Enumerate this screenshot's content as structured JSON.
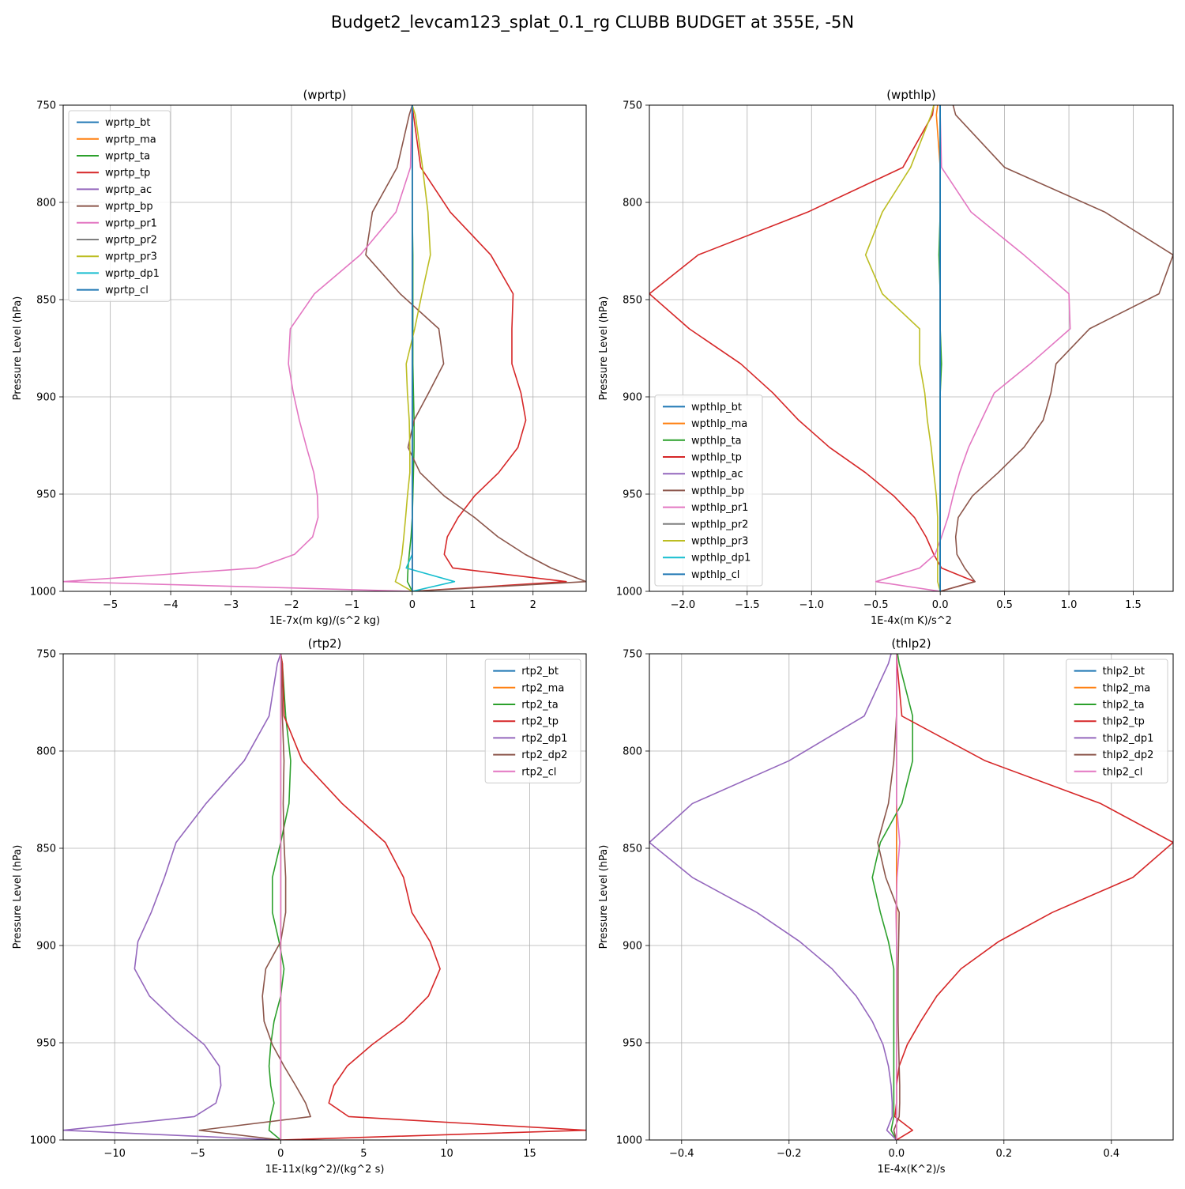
{
  "figure": {
    "title": "Budget2_levcam123_splat_0.1_rg CLUBB BUDGET at 355E, -5N"
  },
  "chart_data": [
    {
      "type": "line",
      "title": "(wprtp)",
      "xlabel": "1E-7x(m kg)/(s^2 kg)",
      "ylabel": "Pressure Level (hPa)",
      "xlim": [
        -5.78,
        2.88
      ],
      "ylim": [
        1000,
        750
      ],
      "xticks": [
        -5,
        -4,
        -3,
        -2,
        -1,
        0,
        1,
        2
      ],
      "xtick_labels": [
        "−5",
        "−4",
        "−3",
        "−2",
        "−1",
        "0",
        "1",
        "2"
      ],
      "yticks": [
        750,
        800,
        850,
        900,
        950,
        1000
      ],
      "ytick_labels": [
        "750",
        "800",
        "850",
        "900",
        "950",
        "1000"
      ],
      "grid": true,
      "legend_position": "upper-left",
      "y": [
        750,
        755,
        782,
        805,
        827,
        847,
        865,
        883,
        898,
        912,
        926,
        939,
        951,
        962,
        972,
        981,
        988,
        995,
        1000
      ],
      "series": [
        {
          "name": "wprtp_bt",
          "color": "#1f77b4",
          "values": [
            0,
            0,
            0,
            0,
            0,
            0,
            0,
            0,
            0,
            0,
            0,
            0,
            0,
            0,
            0,
            0,
            0,
            0,
            0
          ]
        },
        {
          "name": "wprtp_ma",
          "color": "#ff7f0e",
          "values": [
            0,
            0,
            0,
            0,
            0,
            0,
            0,
            0,
            0,
            0,
            0,
            0,
            0,
            0,
            0,
            0,
            0,
            0,
            0
          ]
        },
        {
          "name": "wprtp_ta",
          "color": "#2ca02c",
          "values": [
            0,
            0,
            0,
            0,
            0.01,
            0.01,
            0.01,
            0.01,
            0.02,
            0.03,
            0.03,
            0.02,
            0.01,
            0,
            -0.02,
            -0.05,
            -0.07,
            -0.08,
            0
          ]
        },
        {
          "name": "wprtp_tp",
          "color": "#d62728",
          "values": [
            0,
            0.02,
            0.14,
            0.63,
            1.3,
            1.67,
            1.65,
            1.65,
            1.8,
            1.88,
            1.75,
            1.43,
            1.03,
            0.76,
            0.58,
            0.53,
            0.67,
            2.55,
            0
          ]
        },
        {
          "name": "wprtp_ac",
          "color": "#9467bd",
          "values": [
            0,
            0,
            0,
            0,
            0,
            0,
            0,
            0,
            0,
            0,
            0,
            0,
            0,
            0,
            0,
            0,
            0,
            0,
            0
          ]
        },
        {
          "name": "wprtp_bp",
          "color": "#8c564b",
          "values": [
            0,
            -0.05,
            -0.25,
            -0.66,
            -0.77,
            -0.2,
            0.44,
            0.52,
            0.27,
            0.03,
            -0.07,
            0.13,
            0.53,
            1.03,
            1.42,
            1.87,
            2.3,
            2.88,
            0
          ]
        },
        {
          "name": "wprtp_pr1",
          "color": "#e377c2",
          "values": [
            0,
            -0.01,
            -0.03,
            -0.27,
            -0.86,
            -1.62,
            -2.02,
            -2.05,
            -1.97,
            -1.87,
            -1.75,
            -1.63,
            -1.57,
            -1.56,
            -1.65,
            -1.95,
            -2.58,
            -5.78,
            0
          ]
        },
        {
          "name": "wprtp_pr2",
          "color": "#7f7f7f",
          "values": [
            0,
            0,
            0,
            0,
            0,
            0,
            0,
            0,
            0,
            0,
            0,
            0,
            0,
            0,
            0,
            0,
            0,
            0,
            0
          ]
        },
        {
          "name": "wprtp_pr3",
          "color": "#bcbd22",
          "values": [
            0,
            0.05,
            0.17,
            0.26,
            0.3,
            0.16,
            0.04,
            -0.1,
            -0.08,
            -0.05,
            -0.04,
            -0.04,
            -0.08,
            -0.11,
            -0.14,
            -0.17,
            -0.21,
            -0.28,
            0
          ]
        },
        {
          "name": "wprtp_dp1",
          "color": "#17becf",
          "values": [
            0,
            0,
            0,
            0,
            0,
            0,
            0,
            0,
            0,
            0,
            0,
            0,
            0,
            0,
            0,
            0,
            -0.1,
            0.7,
            0
          ]
        },
        {
          "name": "wprtp_cl",
          "color": "#1f77b4",
          "values": [
            0,
            0,
            0,
            0,
            0,
            0,
            0,
            0,
            0,
            0,
            0,
            0,
            0,
            0,
            0,
            0,
            0,
            0,
            0
          ]
        }
      ]
    },
    {
      "type": "line",
      "title": "(wpthlp)",
      "xlabel": "1E-4x(m K)/s^2",
      "ylabel": "Pressure Level (hPa)",
      "xlim": [
        -2.26,
        1.81
      ],
      "ylim": [
        1000,
        750
      ],
      "xticks": [
        -2.0,
        -1.5,
        -1.0,
        -0.5,
        0.0,
        0.5,
        1.0,
        1.5
      ],
      "xtick_labels": [
        "−2.0",
        "−1.5",
        "−1.0",
        "−0.5",
        "0.0",
        "0.5",
        "1.0",
        "1.5"
      ],
      "yticks": [
        750,
        800,
        850,
        900,
        950,
        1000
      ],
      "ytick_labels": [
        "750",
        "800",
        "850",
        "900",
        "950",
        "1000"
      ],
      "grid": true,
      "legend_position": "lower-left",
      "y": [
        750,
        755,
        782,
        805,
        827,
        847,
        865,
        883,
        898,
        912,
        926,
        939,
        951,
        962,
        972,
        981,
        988,
        995,
        1000
      ],
      "series": [
        {
          "name": "wpthlp_bt",
          "color": "#1f77b4",
          "values": [
            0,
            0,
            0,
            0,
            0,
            0,
            0,
            0,
            0,
            0,
            0,
            0,
            0,
            0,
            0,
            0,
            0,
            0,
            0
          ]
        },
        {
          "name": "wpthlp_ma",
          "color": "#ff7f0e",
          "values": [
            -0.02,
            -0.03,
            0,
            0,
            0,
            0,
            0,
            0,
            0,
            0,
            0,
            0,
            0,
            0,
            0,
            0,
            0,
            0,
            0
          ]
        },
        {
          "name": "wpthlp_ta",
          "color": "#2ca02c",
          "values": [
            0,
            0,
            0,
            0,
            -0.01,
            0,
            0,
            0.01,
            0,
            0,
            0,
            0,
            0,
            0,
            0,
            0,
            0,
            0,
            0
          ]
        },
        {
          "name": "wpthlp_tp",
          "color": "#d62728",
          "values": [
            -0.05,
            -0.06,
            -0.29,
            -1.03,
            -1.88,
            -2.26,
            -1.95,
            -1.55,
            -1.3,
            -1.1,
            -0.86,
            -0.58,
            -0.36,
            -0.2,
            -0.11,
            -0.05,
            0.01,
            0.27,
            0
          ]
        },
        {
          "name": "wpthlp_ac",
          "color": "#9467bd",
          "values": [
            0,
            0,
            0,
            0,
            0,
            0,
            0,
            0,
            0,
            0,
            0,
            0,
            0,
            0,
            0,
            0,
            0,
            0,
            0
          ]
        },
        {
          "name": "wpthlp_bp",
          "color": "#8c564b",
          "values": [
            0.1,
            0.12,
            0.5,
            1.28,
            1.81,
            1.7,
            1.16,
            0.9,
            0.86,
            0.8,
            0.65,
            0.45,
            0.25,
            0.14,
            0.12,
            0.13,
            0.19,
            0.27,
            0
          ]
        },
        {
          "name": "wpthlp_pr1",
          "color": "#e377c2",
          "values": [
            0,
            0,
            0.01,
            0.24,
            0.65,
            1.0,
            1.01,
            0.7,
            0.42,
            0.32,
            0.22,
            0.15,
            0.1,
            0.06,
            0.01,
            -0.04,
            -0.16,
            -0.5,
            0
          ]
        },
        {
          "name": "wpthlp_pr2",
          "color": "#7f7f7f",
          "values": [
            0,
            0,
            0,
            0,
            0,
            0,
            0,
            0,
            0,
            0,
            0,
            0,
            0,
            0,
            0,
            0,
            0,
            0,
            0
          ]
        },
        {
          "name": "wpthlp_pr3",
          "color": "#bcbd22",
          "values": [
            -0.05,
            -0.07,
            -0.23,
            -0.45,
            -0.58,
            -0.45,
            -0.16,
            -0.16,
            -0.12,
            -0.1,
            -0.07,
            -0.05,
            -0.03,
            -0.02,
            -0.02,
            -0.02,
            -0.02,
            -0.02,
            0
          ]
        },
        {
          "name": "wpthlp_dp1",
          "color": "#17becf",
          "values": [
            0,
            0,
            0,
            0,
            0,
            0,
            0,
            0,
            0,
            0,
            0,
            0,
            0,
            0,
            0,
            0,
            0,
            0,
            0
          ]
        },
        {
          "name": "wpthlp_cl",
          "color": "#1f77b4",
          "values": [
            0,
            0,
            0,
            0,
            0,
            0,
            0,
            0,
            0,
            0,
            0,
            0,
            0,
            0,
            0,
            0,
            0,
            0,
            0
          ]
        }
      ]
    },
    {
      "type": "line",
      "title": "(rtp2)",
      "xlabel": "1E-11x(kg^2)/(kg^2 s)",
      "ylabel": "Pressure Level (hPa)",
      "xlim": [
        -13.1,
        18.4
      ],
      "ylim": [
        1000,
        750
      ],
      "xticks": [
        -10,
        -5,
        0,
        5,
        10,
        15
      ],
      "xtick_labels": [
        "−10",
        "−5",
        "0",
        "5",
        "10",
        "15"
      ],
      "yticks": [
        750,
        800,
        850,
        900,
        950,
        1000
      ],
      "ytick_labels": [
        "750",
        "800",
        "850",
        "900",
        "950",
        "1000"
      ],
      "grid": true,
      "legend_position": "upper-right",
      "y": [
        750,
        755,
        782,
        805,
        827,
        847,
        865,
        883,
        898,
        912,
        926,
        939,
        951,
        962,
        972,
        981,
        988,
        995,
        1000
      ],
      "series": [
        {
          "name": "rtp2_bt",
          "color": "#1f77b4",
          "values": [
            0,
            0,
            0,
            0,
            0,
            0,
            0,
            0,
            0,
            0,
            0,
            0,
            0,
            0,
            0,
            0,
            0,
            0,
            0
          ]
        },
        {
          "name": "rtp2_ma",
          "color": "#ff7f0e",
          "values": [
            0,
            0,
            0,
            0,
            0,
            0,
            0,
            0,
            0,
            0,
            0,
            0,
            0,
            0,
            0,
            0,
            0,
            0,
            0
          ]
        },
        {
          "name": "rtp2_ta",
          "color": "#2ca02c",
          "values": [
            0,
            0.1,
            0.3,
            0.6,
            0.5,
            0,
            -0.5,
            -0.5,
            -0.1,
            0.2,
            0,
            -0.4,
            -0.6,
            -0.7,
            -0.6,
            -0.4,
            -0.6,
            -0.7,
            0
          ]
        },
        {
          "name": "rtp2_tp",
          "color": "#d62728",
          "values": [
            0,
            0.1,
            0.2,
            1.3,
            3.7,
            6.3,
            7.4,
            7.9,
            9.0,
            9.6,
            8.9,
            7.4,
            5.5,
            4.0,
            3.2,
            2.9,
            4.1,
            18.4,
            0
          ]
        },
        {
          "name": "rtp2_dp1",
          "color": "#9467bd",
          "values": [
            0,
            -0.2,
            -0.7,
            -2.2,
            -4.5,
            -6.3,
            -7.0,
            -7.8,
            -8.6,
            -8.8,
            -7.9,
            -6.3,
            -4.6,
            -3.7,
            -3.6,
            -3.9,
            -5.2,
            -13.1,
            0
          ]
        },
        {
          "name": "rtp2_dp2",
          "color": "#8c564b",
          "values": [
            0,
            0.05,
            0.1,
            0.2,
            0.15,
            0.2,
            0.3,
            0.3,
            0,
            -0.9,
            -1.1,
            -1.0,
            -0.5,
            0.2,
            0.9,
            1.5,
            1.8,
            -4.9,
            0
          ]
        },
        {
          "name": "rtp2_cl",
          "color": "#e377c2",
          "values": [
            0,
            0,
            0,
            0,
            0,
            0,
            0,
            0,
            0,
            0,
            0,
            0,
            0,
            0,
            0,
            0,
            0,
            0,
            0
          ]
        }
      ]
    },
    {
      "type": "line",
      "title": "(thlp2)",
      "xlabel": "1E-4x(K^2)/s",
      "ylabel": "Pressure Level (hPa)",
      "xlim": [
        -0.46,
        0.515
      ],
      "ylim": [
        1000,
        750
      ],
      "xticks": [
        -0.4,
        -0.2,
        0.0,
        0.2,
        0.4
      ],
      "xtick_labels": [
        "−0.4",
        "−0.2",
        "0.0",
        "0.2",
        "0.4"
      ],
      "yticks": [
        750,
        800,
        850,
        900,
        950,
        1000
      ],
      "ytick_labels": [
        "750",
        "800",
        "850",
        "900",
        "950",
        "1000"
      ],
      "grid": true,
      "legend_position": "upper-right",
      "y": [
        750,
        755,
        782,
        805,
        827,
        847,
        865,
        883,
        898,
        912,
        926,
        939,
        951,
        962,
        972,
        981,
        988,
        995,
        1000
      ],
      "series": [
        {
          "name": "thlp2_bt",
          "color": "#1f77b4",
          "values": [
            0,
            0,
            0,
            0,
            0,
            0,
            0,
            0,
            0,
            0,
            0,
            0,
            0,
            0,
            0,
            0,
            0,
            0,
            0
          ]
        },
        {
          "name": "thlp2_ma",
          "color": "#ff7f0e",
          "values": [
            0,
            0,
            0,
            0,
            0,
            0,
            0,
            0,
            0,
            0,
            0,
            0,
            0,
            0,
            0,
            0,
            0,
            0,
            0
          ]
        },
        {
          "name": "thlp2_ta",
          "color": "#2ca02c",
          "values": [
            0.002,
            0.005,
            0.03,
            0.03,
            0.01,
            -0.03,
            -0.045,
            -0.03,
            -0.015,
            -0.005,
            -0.005,
            -0.005,
            -0.005,
            -0.005,
            -0.005,
            -0.005,
            -0.005,
            -0.01,
            0
          ]
        },
        {
          "name": "thlp2_tp",
          "color": "#d62728",
          "values": [
            0,
            0.001,
            0.01,
            0.165,
            0.38,
            0.515,
            0.44,
            0.29,
            0.19,
            0.12,
            0.075,
            0.045,
            0.02,
            0.005,
            0,
            0,
            -0.003,
            0.03,
            0
          ]
        },
        {
          "name": "thlp2_dp1",
          "color": "#9467bd",
          "values": [
            -0.01,
            -0.015,
            -0.06,
            -0.2,
            -0.38,
            -0.46,
            -0.38,
            -0.26,
            -0.18,
            -0.12,
            -0.075,
            -0.045,
            -0.025,
            -0.015,
            -0.01,
            -0.008,
            -0.008,
            -0.018,
            0
          ]
        },
        {
          "name": "thlp2_dp2",
          "color": "#8c564b",
          "values": [
            0,
            0,
            0,
            -0.005,
            -0.015,
            -0.035,
            -0.02,
            0.005,
            0.004,
            0.003,
            0.003,
            0.003,
            0.004,
            0.005,
            0.006,
            0.006,
            0.005,
            -0.005,
            0
          ]
        },
        {
          "name": "thlp2_cl",
          "color": "#e377c2",
          "values": [
            0,
            0,
            0,
            0,
            0,
            0.006,
            0.001,
            -0.001,
            0,
            0,
            0,
            0,
            0,
            0,
            0,
            0,
            0,
            0,
            0
          ]
        }
      ]
    }
  ]
}
